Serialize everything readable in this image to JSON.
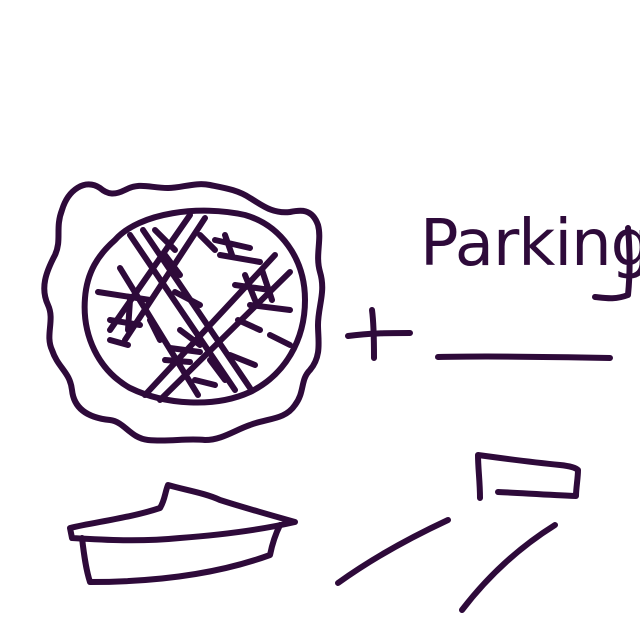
{
  "drawing": {
    "word": "Parking",
    "ink_color": "#2e0a3a",
    "background_color": "#ffffff"
  },
  "elements": {
    "pie_top_view": "pie-top-icon",
    "plus_sign": "plus-icon",
    "answer_blank": "blank-line",
    "pie_slice": "pie-slice-icon",
    "parking_lot_sketch": "parking-lot-icon"
  }
}
